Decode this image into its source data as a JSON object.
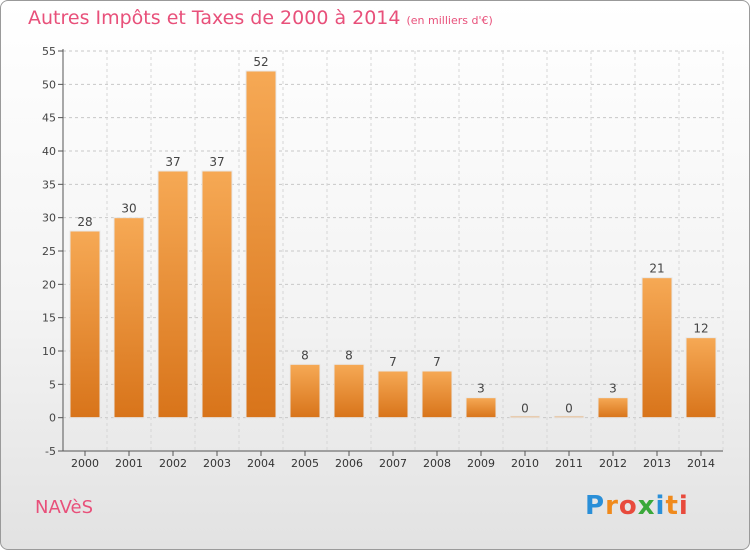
{
  "title": "Autres Impôts et Taxes de 2000 à 2014",
  "title_unit": "(en milliers d'€)",
  "commune": "NAVèS",
  "logo": {
    "letters": [
      "P",
      "r",
      "o",
      "x",
      "i",
      "t",
      "i"
    ],
    "colors": [
      "#2a8fd8",
      "#f08a1c",
      "#e84a3c",
      "#3aa83a",
      "#2a8fd8",
      "#f08a1c",
      "#e84a3c"
    ]
  },
  "chart_data": {
    "type": "bar",
    "categories": [
      "2000",
      "2001",
      "2002",
      "2003",
      "2004",
      "2005",
      "2006",
      "2007",
      "2008",
      "2009",
      "2010",
      "2011",
      "2012",
      "2013",
      "2014"
    ],
    "values": [
      28,
      30,
      37,
      37,
      52,
      8,
      8,
      7,
      7,
      3,
      0,
      0,
      3,
      21,
      12
    ],
    "data_labels": [
      "28",
      "30",
      "37",
      "37",
      "52",
      "8",
      "8",
      "7",
      "7",
      "3",
      "0",
      "0",
      "3",
      "21",
      "12"
    ],
    "ylim": [
      -5,
      55
    ],
    "yticks": [
      -5,
      0,
      5,
      10,
      15,
      20,
      25,
      30,
      35,
      40,
      45,
      50,
      55
    ],
    "grid": true,
    "bar_color": "#f28c28"
  }
}
